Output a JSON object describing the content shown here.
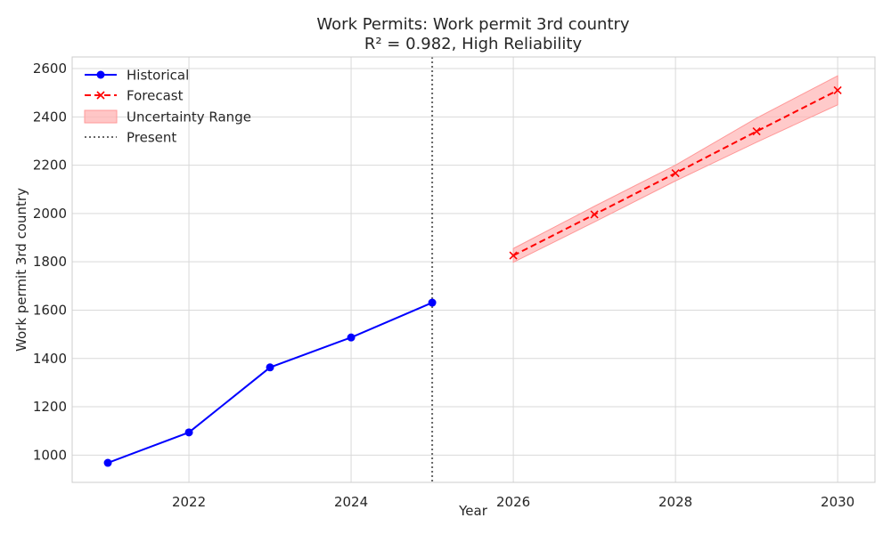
{
  "chart_data": {
    "type": "line",
    "title": "Work Permits: Work permit 3rd country",
    "subtitle": "R² = 0.982, High Reliability",
    "xlabel": "Year",
    "ylabel": "Work permit 3rd country",
    "xlim": [
      2020.56,
      2030.46
    ],
    "ylim": [
      887,
      2648
    ],
    "x_ticks": [
      2022,
      2024,
      2026,
      2028,
      2030
    ],
    "y_ticks": [
      1000,
      1200,
      1400,
      1600,
      1800,
      2000,
      2200,
      2400,
      2600
    ],
    "grid": true,
    "legend_position": "top-left",
    "present_x": 2025,
    "series": [
      {
        "name": "Historical",
        "color": "#0000ff",
        "style": "solid",
        "marker": "circle",
        "x": [
          2021,
          2022,
          2023,
          2024,
          2025
        ],
        "values": [
          968,
          1094,
          1363,
          1487,
          1631
        ]
      },
      {
        "name": "Forecast",
        "color": "#ff0000",
        "style": "dashed",
        "marker": "x",
        "x": [
          2026,
          2027,
          2028,
          2029,
          2030
        ],
        "values": [
          1826,
          1996,
          2167,
          2340,
          2510
        ]
      }
    ],
    "uncertainty": {
      "name": "Uncertainty Range",
      "color": "#ffb3b3",
      "x": [
        2026,
        2027,
        2028,
        2029,
        2030
      ],
      "lower": [
        1798,
        1965,
        2135,
        2295,
        2450
      ],
      "upper": [
        1855,
        2030,
        2200,
        2395,
        2570
      ]
    },
    "present_line": {
      "name": "Present",
      "color": "#666666"
    }
  }
}
